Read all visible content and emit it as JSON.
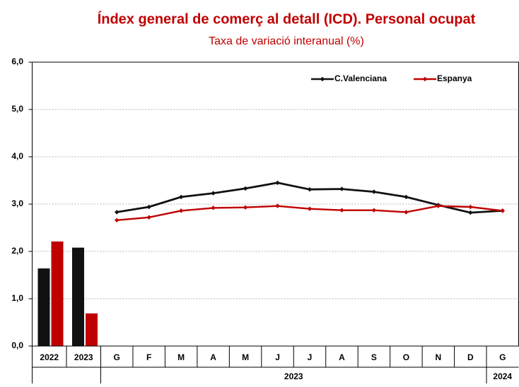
{
  "chart_data": [
    {
      "type": "bar",
      "title": "Índex general de comerç al detall (ICD).  Personal ocupat",
      "subtitle": "Taxa de variació interanual (%)",
      "categories": [
        "2022",
        "2023"
      ],
      "series": [
        {
          "color": "#111111",
          "values": [
            1.64,
            2.08
          ]
        },
        {
          "color": "#c00000",
          "values": [
            2.21,
            0.69
          ]
        }
      ],
      "ylim": [
        0,
        6
      ],
      "yticks": [
        {
          "value": 0,
          "label": "0,0"
        },
        {
          "value": 1,
          "label": "1,0"
        },
        {
          "value": 2,
          "label": "2,0"
        },
        {
          "value": 3,
          "label": "3,0"
        },
        {
          "value": 4,
          "label": "4,0"
        },
        {
          "value": 5,
          "label": "5,0"
        },
        {
          "value": 6,
          "label": "6,0"
        }
      ],
      "grid": true
    },
    {
      "type": "line",
      "categories": [
        "G",
        "F",
        "M",
        "A",
        "M",
        "J",
        "J",
        "A",
        "S",
        "O",
        "N",
        "D",
        "G"
      ],
      "groups": [
        {
          "label": "2023",
          "count": 12
        },
        {
          "label": "2024",
          "count": 1
        }
      ],
      "series": [
        {
          "name": "C.Valenciana",
          "color": "#111111",
          "values": [
            2.83,
            2.94,
            3.15,
            3.23,
            3.33,
            3.45,
            3.31,
            3.32,
            3.26,
            3.15,
            2.98,
            2.82,
            2.86
          ]
        },
        {
          "name": "Espanya",
          "color": "#c00000",
          "values": [
            2.66,
            2.72,
            2.86,
            2.92,
            2.93,
            2.96,
            2.9,
            2.87,
            2.87,
            2.83,
            2.96,
            2.94,
            2.86
          ]
        }
      ],
      "ylim": [
        0,
        6
      ],
      "legend": "top-right"
    }
  ]
}
